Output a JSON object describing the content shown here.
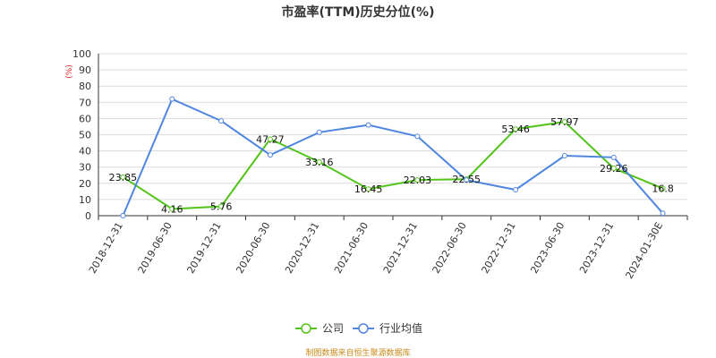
{
  "chart_data": {
    "type": "line",
    "title": "市盈率(TTM)历史分位(%)",
    "y_unit": "(%)",
    "ylim": [
      0,
      100
    ],
    "yticks": [
      0,
      10,
      20,
      30,
      40,
      50,
      60,
      70,
      80,
      90,
      100
    ],
    "grid": true,
    "legend_position": "bottom-center",
    "categories": [
      "2018-12-31",
      "2019-06-30",
      "2019-12-31",
      "2020-06-30",
      "2020-12-31",
      "2021-06-30",
      "2021-12-31",
      "2022-06-30",
      "2022-12-31",
      "2023-06-30",
      "2023-12-31",
      "2024-01-30E"
    ],
    "series": [
      {
        "name": "公司",
        "color": "#52c41a",
        "values": [
          23.85,
          4.16,
          5.76,
          47.27,
          33.16,
          16.45,
          22.03,
          22.55,
          53.46,
          57.97,
          29.26,
          16.8
        ],
        "labels": [
          "23.85",
          "4.16",
          "5.76",
          "47.27",
          "33.16",
          "16.45",
          "22.03",
          "22.55",
          "53.46",
          "57.97",
          "29.26",
          "16.8"
        ]
      },
      {
        "name": "行业均值",
        "color": "#4f86e0",
        "values": [
          0,
          72,
          58.5,
          37.5,
          51.5,
          56,
          49,
          22,
          16,
          37,
          36,
          1.5
        ]
      }
    ]
  },
  "source_note": "制图数据来自恒生聚源数据库"
}
